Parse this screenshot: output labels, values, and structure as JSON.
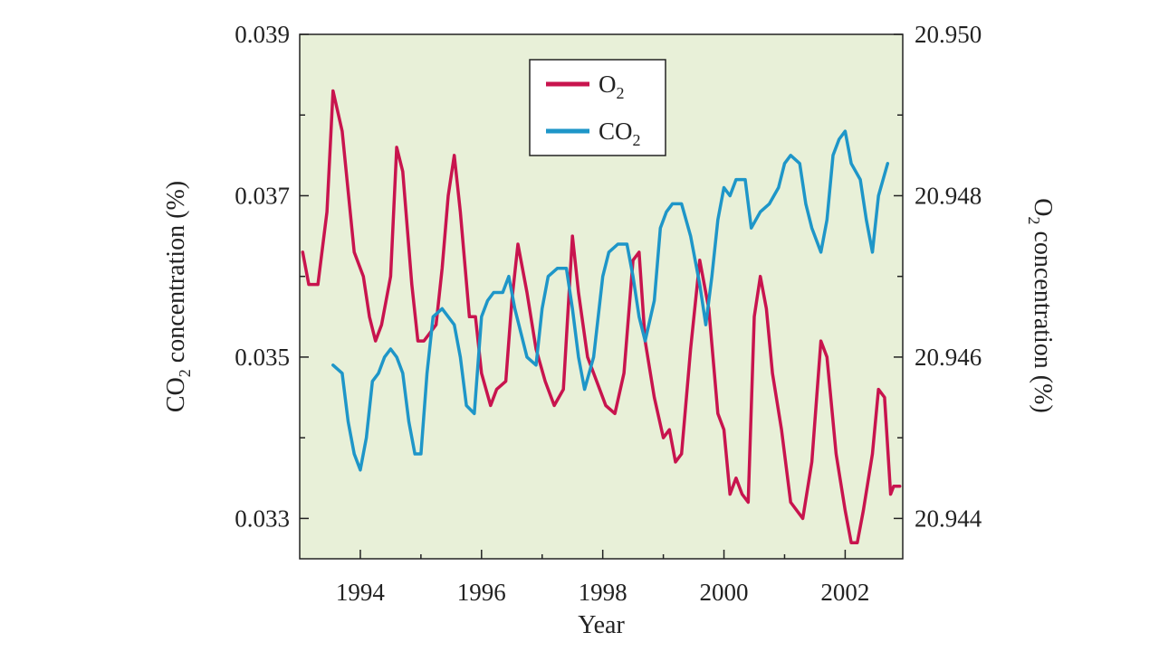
{
  "chart_data": {
    "type": "line",
    "xlabel": "Year",
    "y_left_label": {
      "main": "CO",
      "sub": "2",
      "rest": " concentration (%)"
    },
    "y_right_label": {
      "main": "O",
      "sub": "2",
      "rest": " concentration (%)"
    },
    "x_ticks": [
      "1994",
      "1996",
      "1998",
      "2000",
      "2002"
    ],
    "y_left_ticks": [
      "0.033",
      "0.035",
      "0.037",
      "0.039"
    ],
    "y_right_ticks": [
      "20.944",
      "20.946",
      "20.948",
      "20.950"
    ],
    "xlim": [
      1993.0,
      2002.95
    ],
    "y_left_lim": [
      0.0325,
      0.039
    ],
    "y_right_lim": [
      20.9435,
      20.95
    ],
    "grid": false,
    "legend_position": "top-center",
    "background_color": "#e8f0d8",
    "series": [
      {
        "name": {
          "main": "O",
          "sub": "2"
        },
        "axis": "right",
        "color": "#c8144e",
        "x": [
          1993.05,
          1993.15,
          1993.3,
          1993.45,
          1993.55,
          1993.7,
          1993.9,
          1994.05,
          1994.15,
          1994.25,
          1994.35,
          1994.5,
          1994.6,
          1994.7,
          1994.85,
          1994.95,
          1995.05,
          1995.15,
          1995.25,
          1995.35,
          1995.45,
          1995.55,
          1995.65,
          1995.8,
          1995.9,
          1996.0,
          1996.15,
          1996.25,
          1996.4,
          1996.5,
          1996.6,
          1996.75,
          1996.9,
          1997.05,
          1997.2,
          1997.35,
          1997.5,
          1997.6,
          1997.75,
          1997.9,
          1998.05,
          1998.2,
          1998.35,
          1998.5,
          1998.6,
          1998.7,
          1998.85,
          1999.0,
          1999.1,
          1999.2,
          1999.3,
          1999.45,
          1999.6,
          1999.75,
          1999.9,
          2000.0,
          2000.1,
          2000.2,
          2000.3,
          2000.4,
          2000.5,
          2000.6,
          2000.7,
          2000.8,
          2000.95,
          2001.1,
          2001.3,
          2001.45,
          2001.6,
          2001.7,
          2001.85,
          2002.0,
          2002.1,
          2002.2,
          2002.3,
          2002.45,
          2002.55,
          2002.65,
          2002.75,
          2002.8,
          2002.9
        ],
        "values": [
          20.9473,
          20.9469,
          20.9469,
          20.9478,
          20.9493,
          20.9488,
          20.9473,
          20.947,
          20.9465,
          20.9462,
          20.9464,
          20.947,
          20.9486,
          20.9483,
          20.9469,
          20.9462,
          20.9462,
          20.9463,
          20.9464,
          20.9471,
          20.948,
          20.9485,
          20.9478,
          20.9465,
          20.9465,
          20.9458,
          20.9454,
          20.9456,
          20.9457,
          20.9467,
          20.9474,
          20.9468,
          20.9461,
          20.9457,
          20.9454,
          20.9456,
          20.9475,
          20.9468,
          20.946,
          20.9457,
          20.9454,
          20.9453,
          20.9458,
          20.9472,
          20.9473,
          20.9462,
          20.9455,
          20.945,
          20.9451,
          20.9447,
          20.9448,
          20.9461,
          20.9472,
          20.9466,
          20.9453,
          20.9451,
          20.9443,
          20.9445,
          20.9443,
          20.9442,
          20.9465,
          20.947,
          20.9466,
          20.9458,
          20.9451,
          20.9442,
          20.944,
          20.9447,
          20.9462,
          20.946,
          20.9448,
          20.9441,
          20.9437,
          20.9437,
          20.9441,
          20.9448,
          20.9456,
          20.9455,
          20.9443,
          20.9444,
          20.9444
        ]
      },
      {
        "name": {
          "main": "CO",
          "sub": "2"
        },
        "axis": "left",
        "color": "#1e96c8",
        "x": [
          1993.55,
          1993.7,
          1993.8,
          1993.9,
          1994.0,
          1994.1,
          1994.2,
          1994.3,
          1994.4,
          1994.5,
          1994.6,
          1994.7,
          1994.8,
          1994.9,
          1995.0,
          1995.1,
          1995.2,
          1995.35,
          1995.45,
          1995.55,
          1995.65,
          1995.75,
          1995.88,
          1996.0,
          1996.1,
          1996.2,
          1996.35,
          1996.45,
          1996.55,
          1996.65,
          1996.75,
          1996.9,
          1997.0,
          1997.1,
          1997.25,
          1997.4,
          1997.5,
          1997.6,
          1997.7,
          1997.85,
          1998.0,
          1998.1,
          1998.25,
          1998.4,
          1998.5,
          1998.6,
          1998.7,
          1998.85,
          1998.95,
          1999.05,
          1999.15,
          1999.3,
          1999.45,
          1999.6,
          1999.7,
          1999.8,
          1999.9,
          2000.0,
          2000.1,
          2000.2,
          2000.35,
          2000.45,
          2000.6,
          2000.75,
          2000.9,
          2001.0,
          2001.1,
          2001.25,
          2001.35,
          2001.45,
          2001.6,
          2001.7,
          2001.8,
          2001.9,
          2002.0,
          2002.1,
          2002.25,
          2002.35,
          2002.45,
          2002.55,
          2002.7
        ],
        "values": [
          0.0349,
          0.0348,
          0.0342,
          0.0338,
          0.0336,
          0.034,
          0.0347,
          0.0348,
          0.035,
          0.0351,
          0.035,
          0.0348,
          0.0342,
          0.0338,
          0.0338,
          0.0348,
          0.0355,
          0.0356,
          0.0355,
          0.0354,
          0.035,
          0.0344,
          0.0343,
          0.0355,
          0.0357,
          0.0358,
          0.0358,
          0.036,
          0.0356,
          0.0353,
          0.035,
          0.0349,
          0.0356,
          0.036,
          0.0361,
          0.0361,
          0.0356,
          0.035,
          0.0346,
          0.035,
          0.036,
          0.0363,
          0.0364,
          0.0364,
          0.036,
          0.0355,
          0.0352,
          0.0357,
          0.0366,
          0.0368,
          0.0369,
          0.0369,
          0.0365,
          0.0359,
          0.0354,
          0.036,
          0.0367,
          0.0371,
          0.037,
          0.0372,
          0.0372,
          0.0366,
          0.0368,
          0.0369,
          0.0371,
          0.0374,
          0.0375,
          0.0374,
          0.0369,
          0.0366,
          0.0363,
          0.0367,
          0.0375,
          0.0377,
          0.0378,
          0.0374,
          0.0372,
          0.0367,
          0.0363,
          0.037,
          0.0374
        ]
      }
    ]
  }
}
